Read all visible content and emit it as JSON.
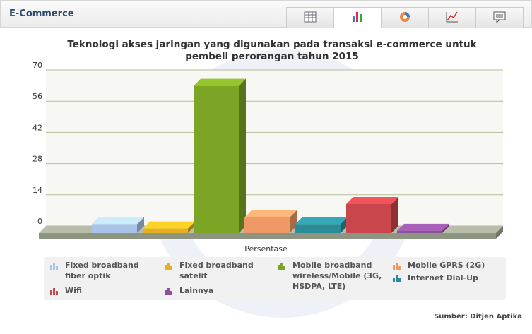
{
  "header": {
    "title": "E-Commerce"
  },
  "chart_data": {
    "type": "bar3d",
    "title": "Teknologi akses jaringan yang digunakan pada transaksi e-commerce untuk pembeli perorangan tahun 2015",
    "x_label": "Persentase",
    "source": "Sumber: Ditjen Aptika",
    "categories": [
      "Fixed broadband fiber optik",
      "Fixed broadband satelit",
      "Mobile broadband wireless/Mobile (3G, HSDPA, LTE)",
      "Mobile GPRS (2G)",
      "Internet Dial-Up",
      "Wifi",
      "Lainnya"
    ],
    "values": [
      4,
      2,
      66,
      7,
      4,
      13,
      1
    ],
    "colors": [
      "#a9c4e8",
      "#e5b020",
      "#7ca526",
      "#ef9966",
      "#2b8c98",
      "#c9464c",
      "#8e4f9c"
    ],
    "ylim": [
      0,
      70
    ],
    "yticks": [
      0,
      14,
      28,
      42,
      56,
      70
    ],
    "grid": true
  }
}
